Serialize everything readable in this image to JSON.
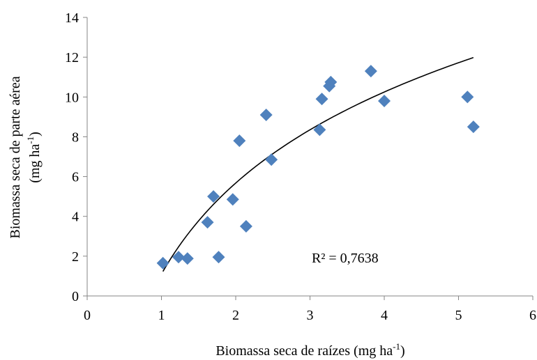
{
  "chart_data": {
    "type": "scatter",
    "xlabel": "Biomassa seca de raízes (mg ha",
    "xlabel_sup": "-1",
    "xlabel_end": ")",
    "ylabel_line1": "Biomassa seca de parte aérea",
    "ylabel_line2": "(mg ha",
    "ylabel_sup": "-1",
    "ylabel_end": ")",
    "xlim": [
      0,
      6
    ],
    "ylim": [
      0,
      14
    ],
    "x_ticks": [
      0,
      1,
      2,
      3,
      4,
      5,
      6
    ],
    "y_ticks": [
      0,
      2,
      4,
      6,
      8,
      10,
      12,
      14
    ],
    "annotation": "R² = 0,7638",
    "grid": false,
    "marker_color": "#4F81BD",
    "series": [
      {
        "points": [
          [
            1.02,
            1.65
          ],
          [
            1.23,
            1.95
          ],
          [
            1.35,
            1.88
          ],
          [
            1.62,
            3.7
          ],
          [
            1.7,
            5.0
          ],
          [
            1.77,
            1.95
          ],
          [
            1.96,
            4.85
          ],
          [
            2.05,
            7.8
          ],
          [
            2.14,
            3.5
          ],
          [
            2.41,
            9.1
          ],
          [
            2.48,
            6.85
          ],
          [
            3.13,
            8.35
          ],
          [
            3.16,
            9.9
          ],
          [
            3.26,
            10.55
          ],
          [
            3.28,
            10.75
          ],
          [
            3.82,
            11.3
          ],
          [
            4.0,
            9.8
          ],
          [
            5.12,
            10.0
          ],
          [
            5.2,
            8.5
          ]
        ]
      }
    ],
    "trendline": {
      "type": "logarithmic",
      "a": 1.1,
      "b": 6.6,
      "x_range": [
        1.02,
        5.2
      ]
    }
  }
}
